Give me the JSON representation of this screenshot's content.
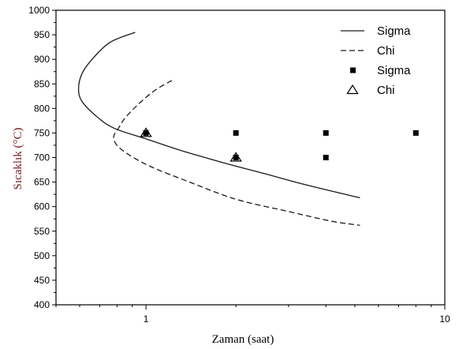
{
  "chart_data": {
    "type": "line",
    "xlabel": "Zaman (saat)",
    "ylabel": "Sıcaklık (°C)",
    "xscale": "log",
    "xlim": [
      0.5,
      10
    ],
    "ylim": [
      400,
      1000
    ],
    "xticks": [
      1,
      10
    ],
    "xtick_labels": [
      "1",
      "10"
    ],
    "yticks": [
      400,
      450,
      500,
      550,
      600,
      650,
      700,
      750,
      800,
      850,
      900,
      950,
      1000
    ],
    "ytick_labels": [
      "400",
      "450",
      "500",
      "550",
      "600",
      "650",
      "700",
      "750",
      "800",
      "850",
      "900",
      "950",
      "1000"
    ],
    "grid": false,
    "legend_position": "top-right",
    "series": [
      {
        "name": "Sigma",
        "kind": "line",
        "style": "solid",
        "points": [
          [
            0.92,
            955
          ],
          [
            0.76,
            935
          ],
          [
            0.66,
            900
          ],
          [
            0.61,
            870
          ],
          [
            0.595,
            840
          ],
          [
            0.61,
            815
          ],
          [
            0.68,
            785
          ],
          [
            0.78,
            760
          ],
          [
            1.0,
            738
          ],
          [
            1.3,
            715
          ],
          [
            1.8,
            690
          ],
          [
            2.5,
            667
          ],
          [
            3.5,
            643
          ],
          [
            5.2,
            618
          ]
        ]
      },
      {
        "name": "Chi",
        "kind": "line",
        "style": "dashed",
        "points": [
          [
            1.22,
            857
          ],
          [
            1.06,
            835
          ],
          [
            0.93,
            805
          ],
          [
            0.85,
            780
          ],
          [
            0.81,
            760
          ],
          [
            0.78,
            743
          ],
          [
            0.8,
            725
          ],
          [
            0.88,
            705
          ],
          [
            1.05,
            680
          ],
          [
            1.4,
            650
          ],
          [
            2.0,
            615
          ],
          [
            3.0,
            590
          ],
          [
            4.2,
            570
          ],
          [
            5.2,
            562
          ]
        ]
      },
      {
        "name": "Sigma",
        "kind": "points",
        "marker": "square",
        "points": [
          [
            1,
            750
          ],
          [
            2,
            750
          ],
          [
            4,
            750
          ],
          [
            8,
            750
          ],
          [
            2,
            700
          ],
          [
            4,
            700
          ]
        ]
      },
      {
        "name": "Chi",
        "kind": "points",
        "marker": "triangle",
        "points": [
          [
            1,
            750
          ],
          [
            2,
            700
          ]
        ]
      }
    ]
  }
}
